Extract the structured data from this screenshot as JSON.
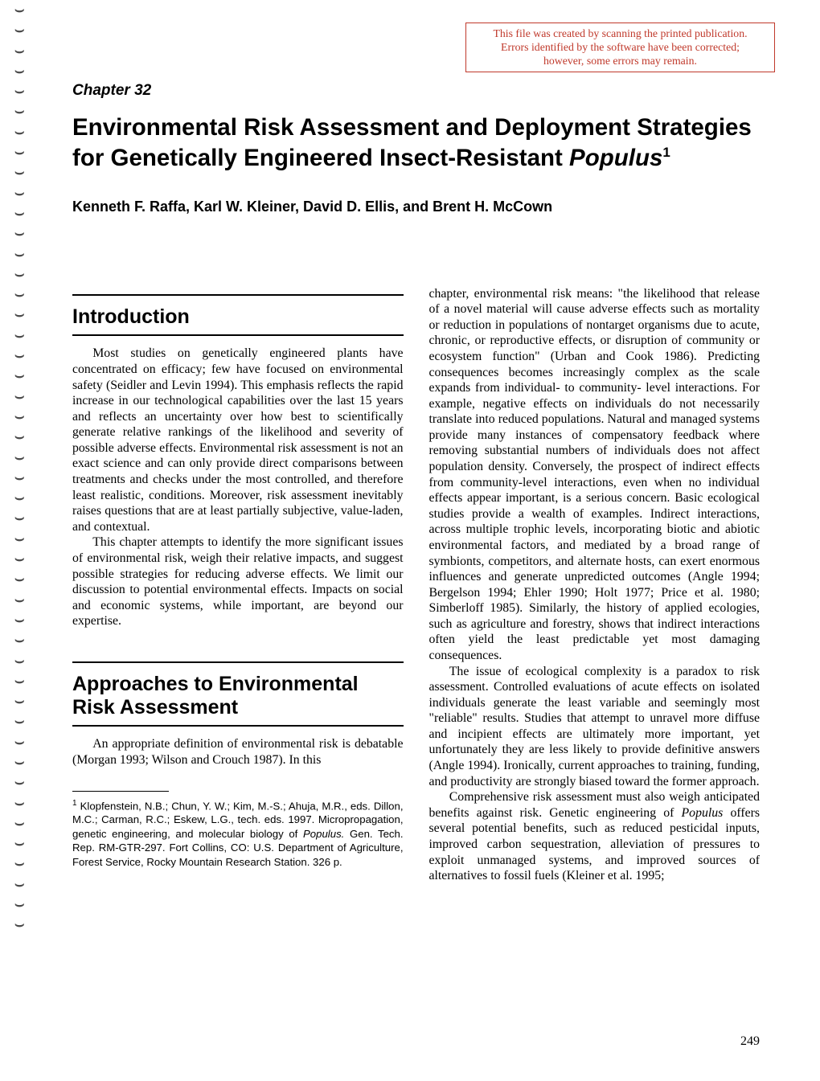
{
  "banner": {
    "line1": "This file was created by scanning the printed publication.",
    "line2": "Errors identified by the software have been corrected;",
    "line3": "however, some errors may remain.",
    "border_color": "#c0392b",
    "text_color": "#c0392b"
  },
  "chapter_label": "Chapter 32",
  "title_plain": "Environmental Risk Assessment and Deployment Strategies for Genetically Engineered Insect-Resistant ",
  "title_ital": "Populus",
  "title_sup": "1",
  "authors": "Kenneth F. Raffa, Karl W. Kleiner, David D. Ellis, and Brent H. McCown",
  "sections": {
    "intro_heading": "Introduction",
    "approaches_heading": "Approaches to Environmental Risk Assessment"
  },
  "left": {
    "intro_p1": "Most studies on genetically engineered plants have concentrated on efficacy; few have focused on environmental safety (Seidler and Levin 1994). This emphasis reflects the rapid increase in our technological capabilities over the last 15 years and reflects an uncertainty over how best to scientifically generate relative rankings of the likelihood and severity of possible adverse effects. Environmental risk assessment is not an exact science and can only provide direct comparisons between treatments and checks under the most controlled, and therefore least realistic, conditions. Moreover, risk assessment inevitably raises questions that are at least partially subjective, value-laden, and contextual.",
    "intro_p2": "This chapter attempts to identify the more significant issues of environmental risk, weigh their relative impacts, and suggest possible strategies for reducing adverse effects. We limit our discussion to potential environmental effects. Impacts on social and economic systems, while important, are beyond our expertise.",
    "approaches_p1": "An appropriate definition of environmental risk is debatable (Morgan 1993; Wilson and Crouch 1987). In this"
  },
  "right": {
    "p1": "chapter, environmental risk means: \"the likelihood that release of a novel material will cause adverse effects such as mortality or reduction in populations of nontarget organisms due to acute, chronic, or reproductive effects, or disruption of community or ecosystem function\" (Urban and Cook 1986). Predicting consequences becomes increasingly complex as the scale expands from individual- to community- level interactions. For example, negative effects on individuals do not necessarily translate into reduced populations. Natural and managed systems provide many instances of compensatory feedback where removing substantial numbers of individuals does not affect population density. Conversely, the prospect of indirect effects from community-level interactions, even when no individual effects appear important, is a serious concern. Basic ecological studies provide a wealth of examples. Indirect interactions, across multiple trophic levels, incorporating biotic and abiotic environmental factors, and mediated by a broad range of symbionts, competitors, and alternate hosts, can exert enormous influences and generate unpredicted outcomes (Angle 1994; Bergelson 1994; Ehler 1990; Holt 1977; Price et al. 1980; Simberloff 1985). Similarly, the history of applied ecologies, such as agriculture and forestry, shows that indirect interactions often yield the least predictable yet most damaging consequences.",
    "p2": "The issue of ecological complexity is a paradox to risk assessment. Controlled evaluations of acute effects on isolated individuals generate the least variable and seemingly most \"reliable\" results. Studies that attempt to unravel more diffuse and incipient effects are ultimately more important, yet unfortunately they are less likely to provide definitive answers (Angle 1994). Ironically, current approaches to training, funding, and productivity are strongly biased toward the former approach.",
    "p3_a": "Comprehensive risk assessment must also weigh anticipated benefits against risk. Genetic engineering of ",
    "p3_ital": "Populus",
    "p3_b": " offers several potential benefits, such as reduced pesticidal inputs, improved carbon sequestration, alleviation of pressures to exploit unmanaged systems, and improved sources of alternatives to fossil fuels (Kleiner et al. 1995;"
  },
  "footnote": {
    "sup": "1",
    "text_a": " Klopfenstein, N.B.; Chun, Y. W.; Kim, M.-S.; Ahuja, M.R., eds. Dillon, M.C.; Carman, R.C.; Eskew, L.G., tech. eds. 1997. Micropropagation, genetic engineering, and molecular biology of ",
    "text_ital": "Populus.",
    "text_b": " Gen. Tech. Rep. RM-GTR-297. Fort Collins, CO: U.S. Department of Agriculture, Forest Service, Rocky Mountain Research Station. 326 p."
  },
  "page_number": "249",
  "colors": {
    "body_bg": "#ffffff",
    "text": "#000000",
    "rule": "#000000",
    "banner_border": "#c0392b",
    "banner_text": "#c0392b",
    "binding_mark": "#4a4a4a"
  },
  "binding_mark_count": 46
}
